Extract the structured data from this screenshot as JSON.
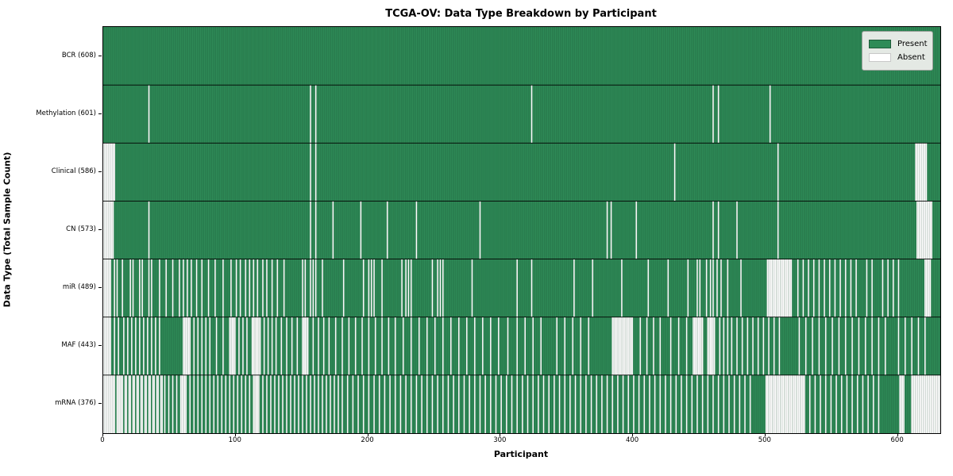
{
  "chart_data": {
    "type": "heatmap",
    "title": "TCGA-OV: Data Type Breakdown by Participant",
    "xlabel": "Participant",
    "ylabel": "Data Type (Total Sample Count)",
    "n_participants": 632,
    "x_ticks": [
      0,
      100,
      200,
      300,
      400,
      500,
      600
    ],
    "grid": false,
    "legend_position": "upper right",
    "legend": {
      "present_label": "Present",
      "absent_label": "Absent"
    },
    "colors": {
      "present": "#2e8b57",
      "absent": "#ffffff",
      "cell_border": "rgba(0,0,0,0.30)",
      "row_separator": "#000000",
      "legend_bg": "#e4e9e4"
    },
    "rows": [
      {
        "name": "BCR",
        "label": "BCR (608)",
        "present_count": 608,
        "absent": []
      },
      {
        "name": "Methylation",
        "label": "Methylation (601)",
        "present_count": 601,
        "absent": [
          34,
          156,
          160,
          323,
          460,
          464,
          503
        ]
      },
      {
        "name": "Clinical",
        "label": "Clinical (586)",
        "present_count": 586,
        "absent": [
          [
            0,
            8
          ],
          156,
          160,
          431,
          509,
          [
            613,
            621
          ]
        ]
      },
      {
        "name": "CN",
        "label": "CN (573)",
        "present_count": 573,
        "absent": [
          [
            0,
            7
          ],
          34,
          156,
          160,
          173,
          194,
          214,
          236,
          284,
          380,
          383,
          402,
          460,
          464,
          478,
          509,
          [
            614,
            625
          ]
        ]
      },
      {
        "name": "miR",
        "label": "miR (489)",
        "present_count": 489,
        "absent": [
          [
            0,
            5
          ],
          8,
          10,
          14,
          20,
          22,
          27,
          29,
          34,
          36,
          42,
          47,
          52,
          57,
          60,
          63,
          66,
          70,
          74,
          79,
          84,
          90,
          96,
          100,
          103,
          107,
          110,
          113,
          116,
          120,
          123,
          127,
          131,
          136,
          150,
          152,
          156,
          158,
          160,
          165,
          181,
          196,
          200,
          202,
          204,
          210,
          225,
          228,
          230,
          232,
          248,
          252,
          254,
          256,
          278,
          312,
          323,
          355,
          369,
          391,
          411,
          426,
          441,
          448,
          450,
          455,
          458,
          460,
          463,
          466,
          471,
          481,
          [
            501,
            519
          ],
          524,
          528,
          532,
          536,
          540,
          544,
          548,
          552,
          556,
          560,
          564,
          568,
          576,
          580,
          588,
          592,
          596,
          600,
          [
            620,
            624
          ]
        ]
      },
      {
        "name": "MAF",
        "label": "MAF (443)",
        "present_count": 443,
        "absent": [
          [
            0,
            5
          ],
          8,
          11,
          15,
          18,
          21,
          24,
          27,
          30,
          33,
          36,
          39,
          42,
          [
            60,
            65
          ],
          68,
          71,
          74,
          77,
          80,
          85,
          90,
          [
            95,
            99
          ],
          102,
          105,
          108,
          [
            112,
            118
          ],
          121,
          124,
          127,
          130,
          134,
          138,
          142,
          146,
          [
            150,
            154
          ],
          158,
          162,
          166,
          170,
          175,
          180,
          185,
          190,
          195,
          200,
          205,
          210,
          215,
          220,
          226,
          232,
          238,
          244,
          250,
          256,
          262,
          268,
          274,
          280,
          286,
          292,
          298,
          305,
          312,
          318,
          324,
          330,
          342,
          348,
          354,
          360,
          366,
          [
            384,
            399
          ],
          405,
          410,
          415,
          420,
          428,
          434,
          440,
          [
            445,
            452
          ],
          [
            456,
            461
          ],
          465,
          468,
          471,
          474,
          478,
          482,
          486,
          490,
          494,
          498,
          502,
          506,
          510,
          525,
          530,
          535,
          540,
          545,
          550,
          555,
          560,
          565,
          570,
          575,
          580,
          585,
          590,
          600,
          605,
          610,
          615,
          620
        ]
      },
      {
        "name": "mRNA",
        "label": "mRNA (376)",
        "present_count": 376,
        "absent": [
          [
            0,
            8
          ],
          10,
          11,
          12,
          13,
          14,
          16,
          17,
          19,
          20,
          22,
          23,
          25,
          26,
          28,
          29,
          31,
          32,
          34,
          35,
          37,
          38,
          40,
          41,
          43,
          44,
          46,
          49,
          52,
          55,
          [
            58,
            62
          ],
          65,
          68,
          71,
          74,
          77,
          80,
          83,
          86,
          89,
          92,
          95,
          98,
          101,
          104,
          107,
          110,
          [
            113,
            117
          ],
          120,
          123,
          126,
          129,
          132,
          135,
          138,
          141,
          144,
          147,
          150,
          153,
          156,
          159,
          162,
          165,
          168,
          171,
          174,
          177,
          180,
          184,
          188,
          192,
          196,
          200,
          204,
          208,
          212,
          216,
          220,
          224,
          228,
          232,
          236,
          240,
          244,
          248,
          252,
          256,
          260,
          264,
          268,
          272,
          276,
          280,
          284,
          288,
          292,
          296,
          300,
          304,
          308,
          312,
          316,
          320,
          324,
          328,
          332,
          336,
          340,
          344,
          348,
          352,
          356,
          360,
          364,
          368,
          372,
          376,
          380,
          384,
          388,
          392,
          396,
          400,
          404,
          408,
          412,
          416,
          420,
          424,
          428,
          432,
          436,
          440,
          444,
          448,
          452,
          456,
          460,
          464,
          468,
          472,
          476,
          480,
          484,
          488,
          [
            500,
            529
          ],
          533,
          537,
          541,
          545,
          549,
          553,
          557,
          561,
          565,
          569,
          573,
          577,
          581,
          585,
          [
            601,
            604
          ],
          [
            610,
            631
          ]
        ]
      }
    ]
  }
}
